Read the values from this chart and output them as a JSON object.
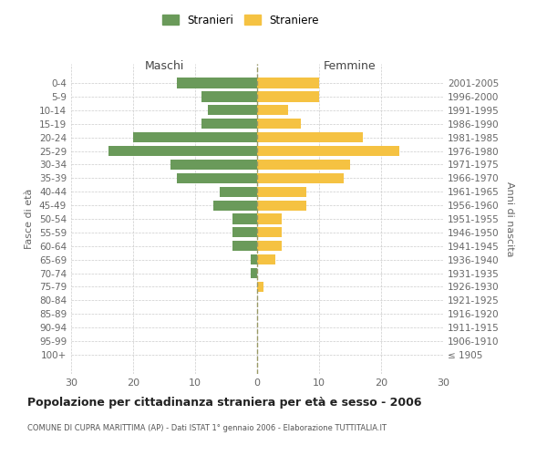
{
  "age_groups": [
    "0-4",
    "5-9",
    "10-14",
    "15-19",
    "20-24",
    "25-29",
    "30-34",
    "35-39",
    "40-44",
    "45-49",
    "50-54",
    "55-59",
    "60-64",
    "65-69",
    "70-74",
    "75-79",
    "80-84",
    "85-89",
    "90-94",
    "95-99",
    "100+"
  ],
  "birth_years": [
    "2001-2005",
    "1996-2000",
    "1991-1995",
    "1986-1990",
    "1981-1985",
    "1976-1980",
    "1971-1975",
    "1966-1970",
    "1961-1965",
    "1956-1960",
    "1951-1955",
    "1946-1950",
    "1941-1945",
    "1936-1940",
    "1931-1935",
    "1926-1930",
    "1921-1925",
    "1916-1920",
    "1911-1915",
    "1906-1910",
    "≤ 1905"
  ],
  "maschi": [
    13,
    9,
    8,
    9,
    20,
    24,
    14,
    13,
    6,
    7,
    4,
    4,
    4,
    1,
    1,
    0,
    0,
    0,
    0,
    0,
    0
  ],
  "femmine": [
    10,
    10,
    5,
    7,
    17,
    23,
    15,
    14,
    8,
    8,
    4,
    4,
    4,
    3,
    0,
    1,
    0,
    0,
    0,
    0,
    0
  ],
  "maschi_color": "#6a9a5a",
  "femmine_color": "#f5c242",
  "title": "Popolazione per cittadinanza straniera per età e sesso - 2006",
  "subtitle": "COMUNE DI CUPRA MARITTIMA (AP) - Dati ISTAT 1° gennaio 2006 - Elaborazione TUTTITALIA.IT",
  "xlabel_left": "Maschi",
  "xlabel_right": "Femmine",
  "ylabel_left": "Fasce di età",
  "ylabel_right": "Anni di nascita",
  "legend_maschi": "Stranieri",
  "legend_femmine": "Straniere",
  "xlim": 30,
  "background_color": "#ffffff",
  "grid_color": "#cccccc",
  "bar_height": 0.75
}
